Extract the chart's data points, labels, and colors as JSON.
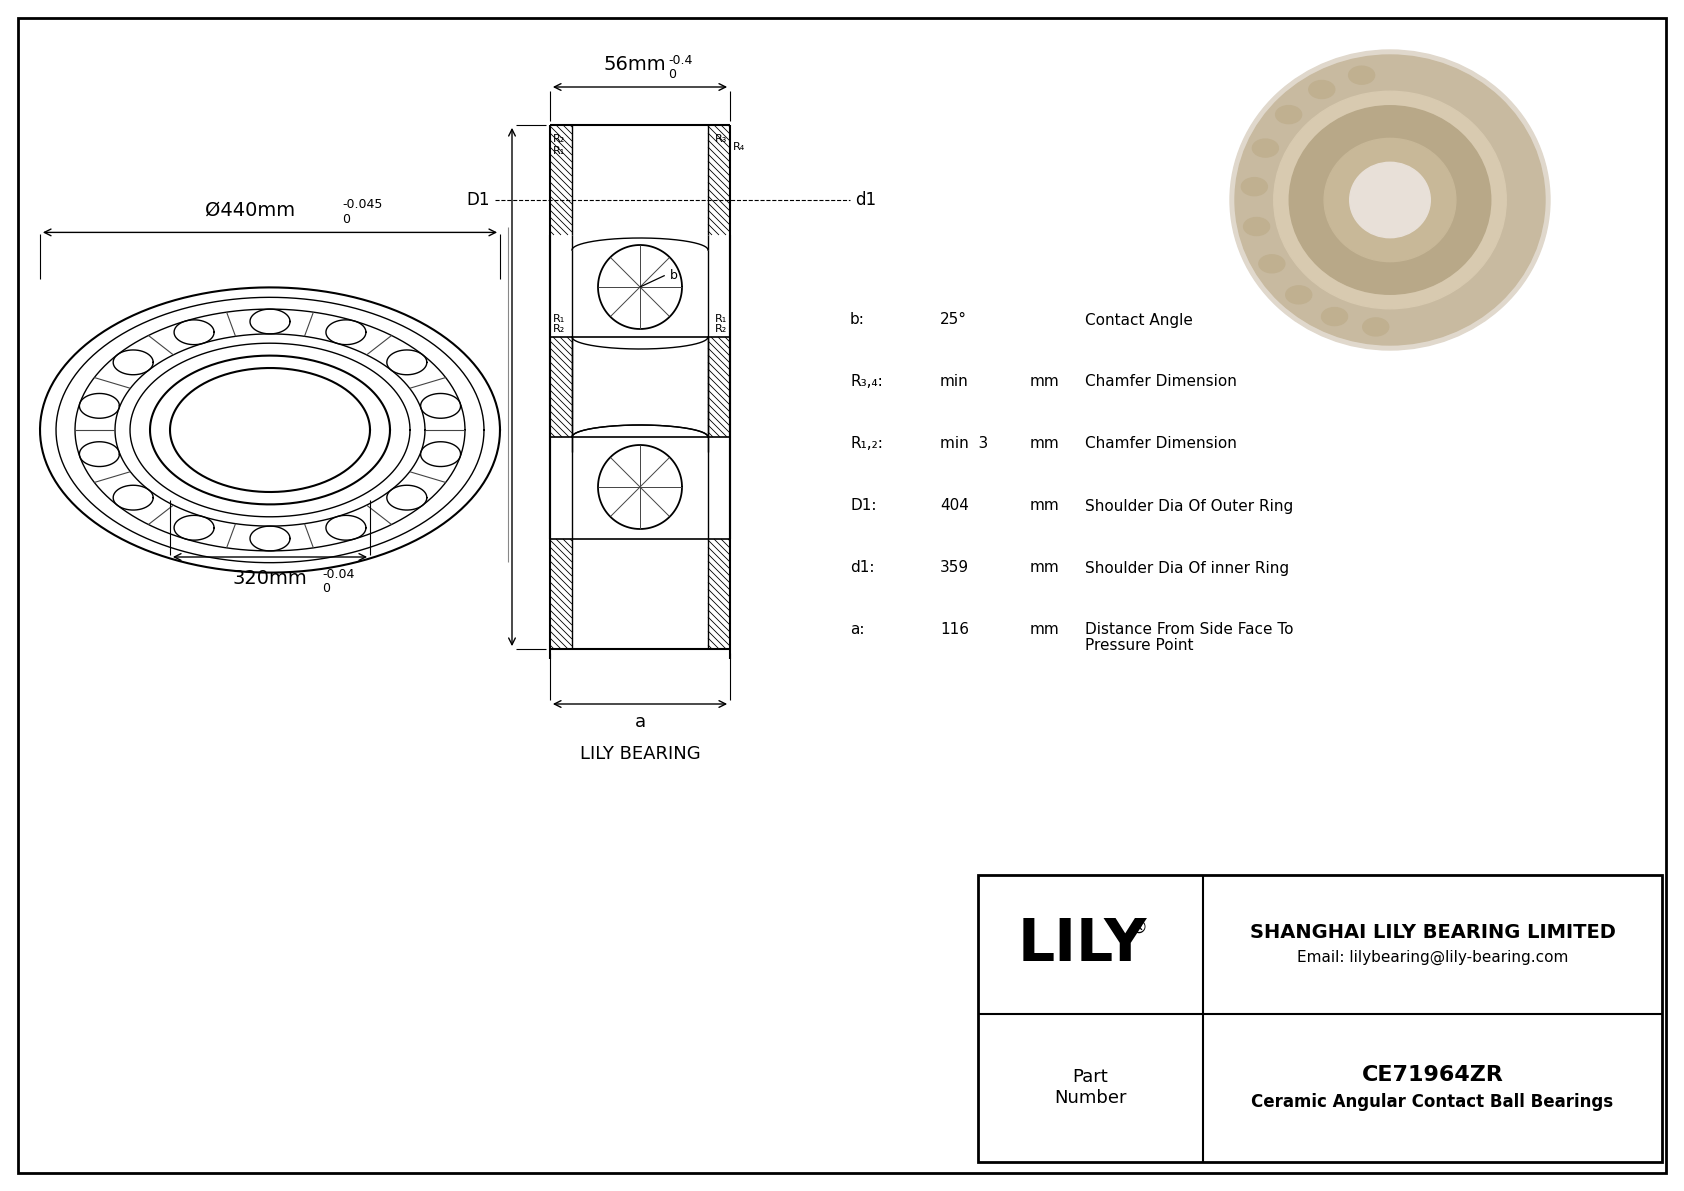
{
  "bg_color": "#ffffff",
  "company_name": "LILY",
  "company_reg": "®",
  "company_full": "SHANGHAI LILY BEARING LIMITED",
  "company_email": "Email: lilybearing@lily-bearing.com",
  "part_label": "Part\nNumber",
  "part_number": "CE71964ZR",
  "part_desc": "Ceramic Angular Contact Ball Bearings",
  "lily_bearing_label": "LILY BEARING",
  "dim_od_main": "Ø440mm",
  "dim_od_tol": "-0.045",
  "dim_od_tol_upper": "0",
  "dim_id_main": "320mm",
  "dim_id_tol": "-0.04",
  "dim_id_tol_upper": "0",
  "dim_w_main": "56mm",
  "dim_w_tol": "-0.4",
  "dim_w_tol_upper": "0",
  "params": [
    {
      "label": "b:",
      "value": "25°",
      "unit": "",
      "description": "Contact Angle"
    },
    {
      "label": "R₃,₄:",
      "value": "min",
      "unit": "mm",
      "description": "Chamfer Dimension"
    },
    {
      "label": "R₁,₂:",
      "value": "min  3",
      "unit": "mm",
      "description": "Chamfer Dimension"
    },
    {
      "label": "D1:",
      "value": "404",
      "unit": "mm",
      "description": "Shoulder Dia Of Outer Ring"
    },
    {
      "label": "d1:",
      "value": "359",
      "unit": "mm",
      "description": "Shoulder Dia Of inner Ring"
    },
    {
      "label": "a:",
      "value": "116",
      "unit": "mm",
      "description": "Distance From Side Face To\nPressure Point"
    }
  ]
}
